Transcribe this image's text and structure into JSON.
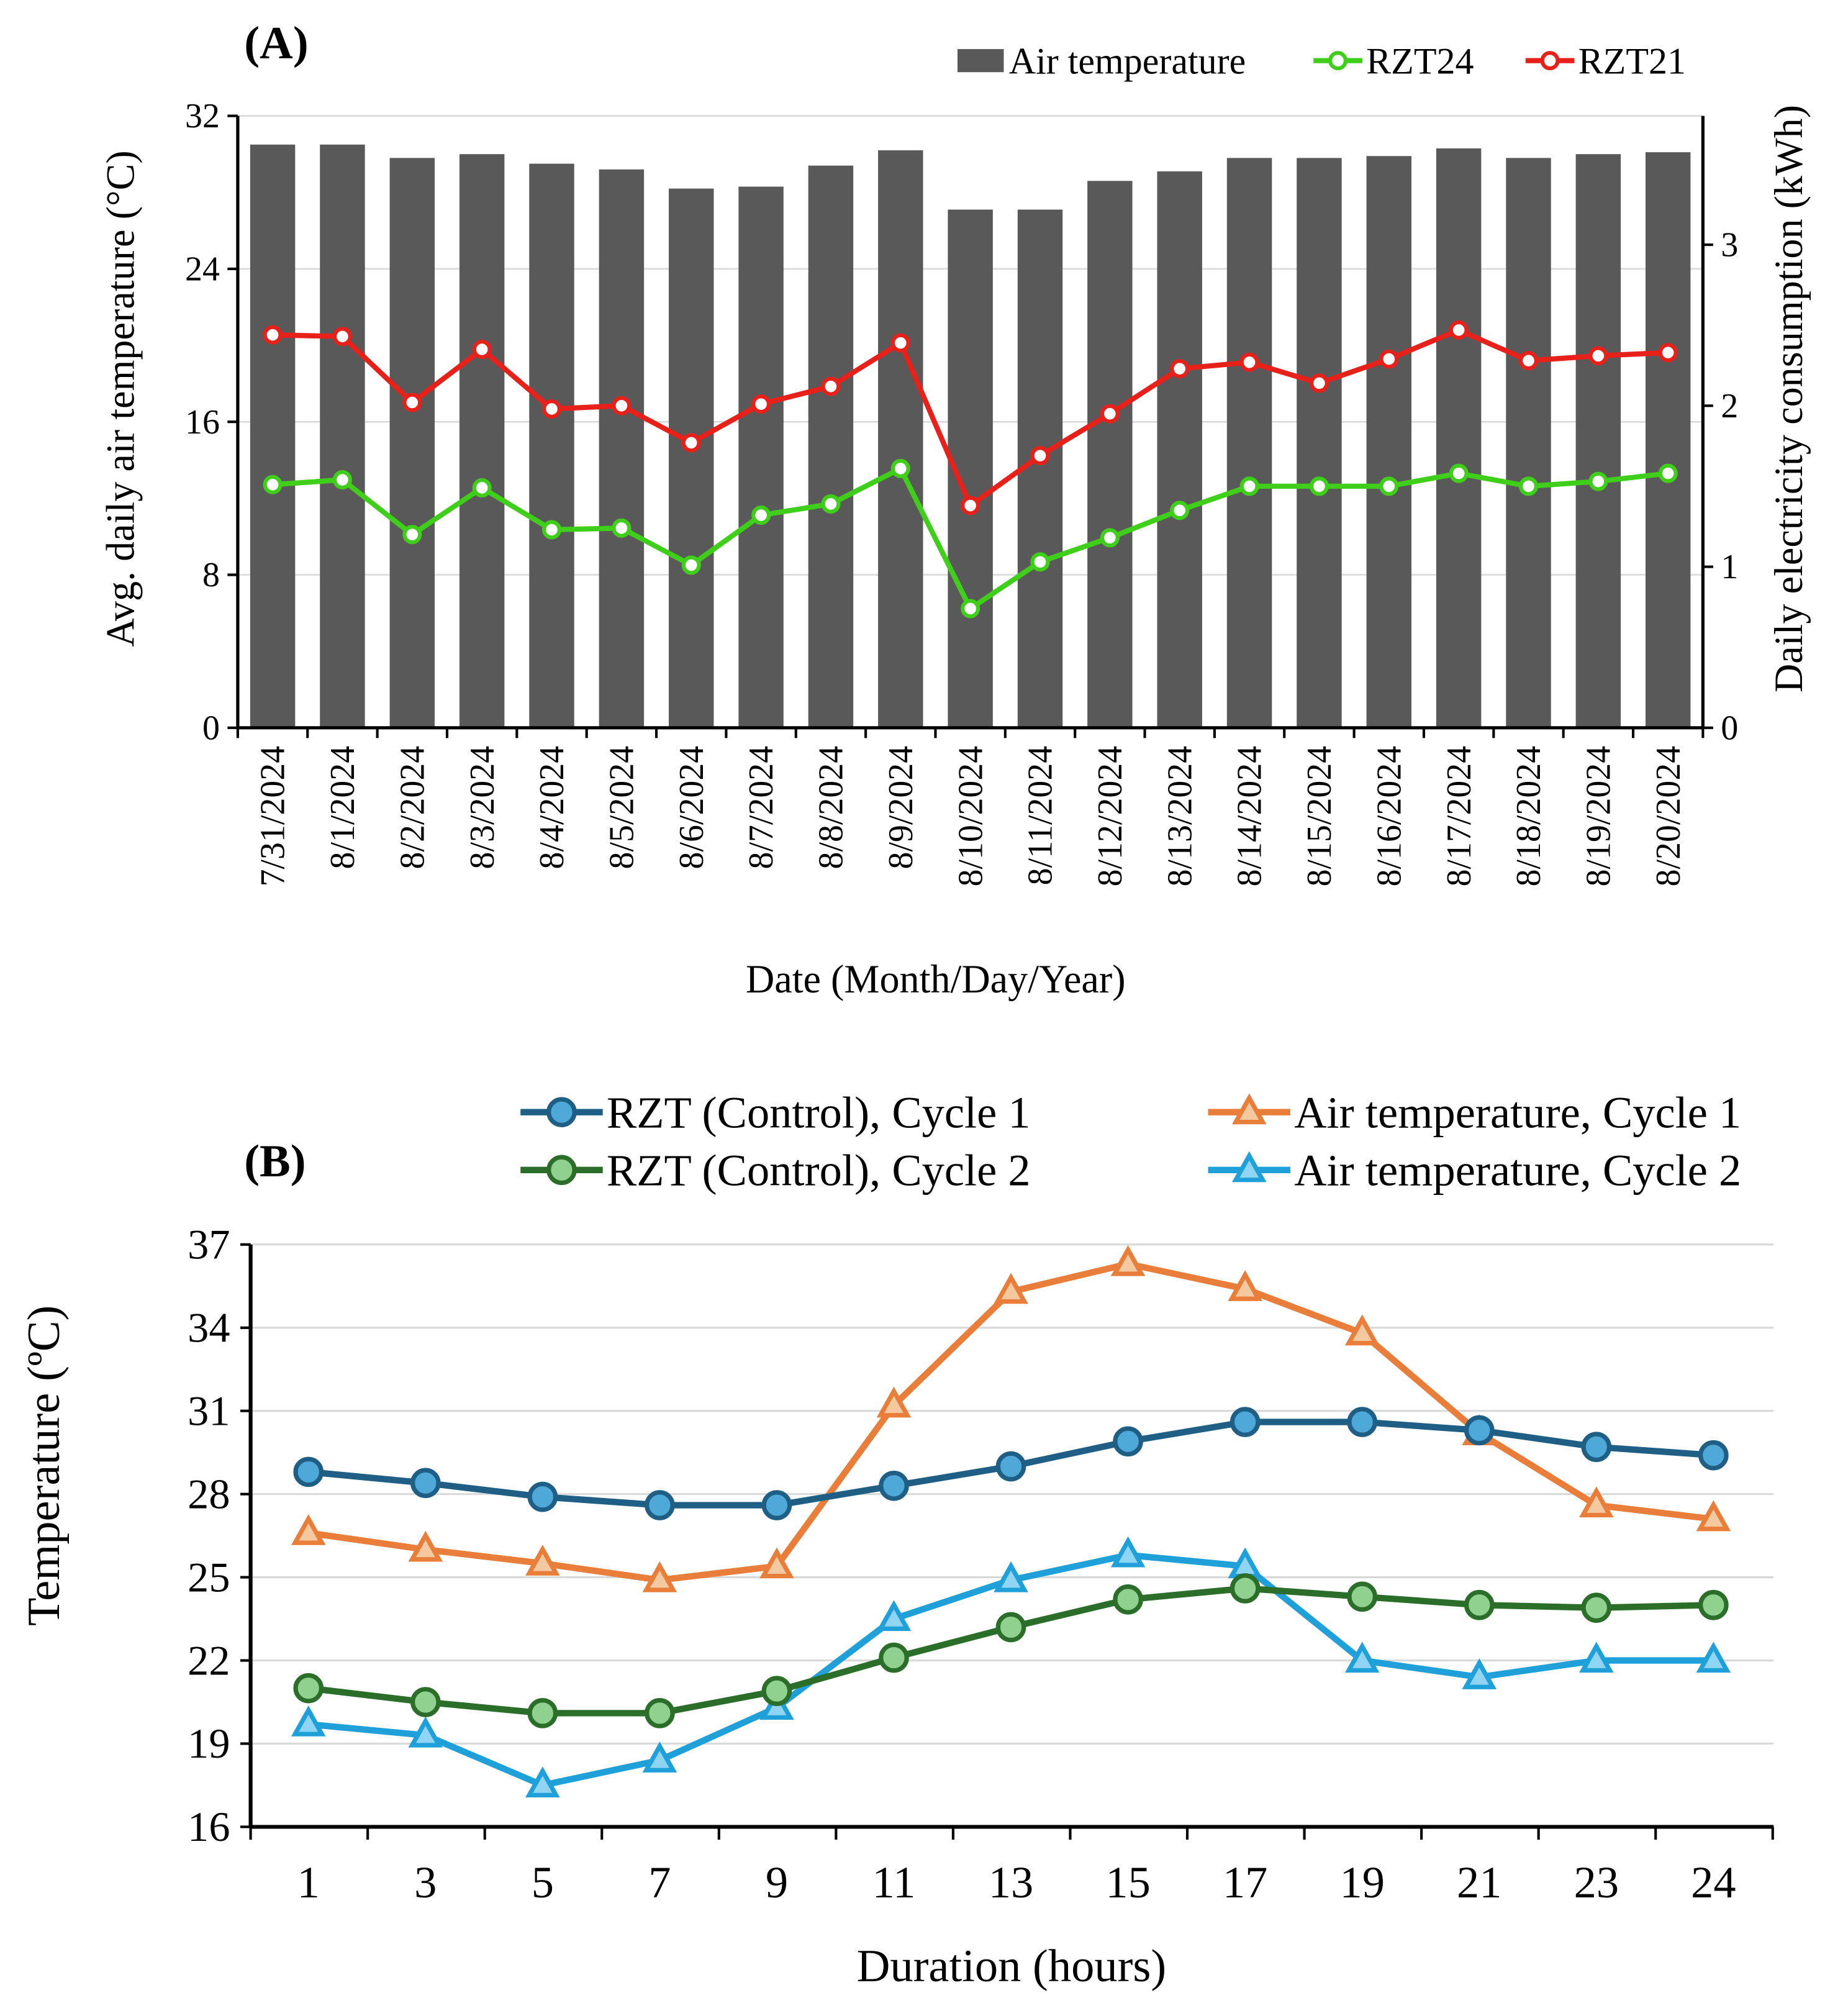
{
  "chart_data": [
    {
      "type": "bar",
      "panel_title": "(A)",
      "xlabel": "Date (Month/Day/Year)",
      "ylabel": "Avg. daily air temperature (°C)",
      "y2label": "Daily electricity consumption (kWh)",
      "ylim": [
        0,
        32
      ],
      "y2lim": [
        0,
        3.8
      ],
      "yticks": [
        "0",
        "8",
        "16",
        "24",
        "32"
      ],
      "y2ticks": [
        "0",
        "1",
        "2",
        "3"
      ],
      "legend_position": "top-right",
      "categories": [
        "7/31/2024",
        "8/1/2024",
        "8/2/2024",
        "8/3/2024",
        "8/4/2024",
        "8/5/2024",
        "8/6/2024",
        "8/7/2024",
        "8/8/2024",
        "8/9/2024",
        "8/10/2024",
        "8/11/2024",
        "8/12/2024",
        "8/13/2024",
        "8/14/2024",
        "8/15/2024",
        "8/16/2024",
        "8/17/2024",
        "8/18/2024",
        "8/19/2024",
        "8/20/2024"
      ],
      "series": [
        {
          "name": "Air temperature",
          "type": "bar",
          "axis": "left",
          "color": "#595959",
          "values": [
            30.5,
            30.5,
            29.8,
            30.0,
            29.5,
            29.2,
            28.2,
            28.3,
            29.4,
            30.2,
            27.1,
            27.1,
            28.6,
            29.1,
            29.8,
            29.8,
            29.9,
            30.3,
            29.8,
            30.0,
            30.1
          ]
        },
        {
          "name": "RZT24",
          "type": "line",
          "axis": "right",
          "color": "#3fcf1a",
          "values": [
            1.51,
            1.54,
            1.2,
            1.49,
            1.23,
            1.24,
            1.01,
            1.32,
            1.39,
            1.61,
            0.74,
            1.03,
            1.18,
            1.35,
            1.5,
            1.5,
            1.5,
            1.58,
            1.5,
            1.53,
            1.58
          ]
        },
        {
          "name": "RZT21",
          "type": "line",
          "axis": "right",
          "color": "#e8201a",
          "values": [
            2.44,
            2.43,
            2.02,
            2.35,
            1.98,
            2.0,
            1.77,
            2.01,
            2.12,
            2.39,
            1.38,
            1.69,
            1.95,
            2.23,
            2.27,
            2.14,
            2.29,
            2.47,
            2.28,
            2.31,
            2.33
          ]
        }
      ]
    },
    {
      "type": "line",
      "panel_title": "(B)",
      "xlabel": "Duration (hours)",
      "ylabel": "Temperature (ºC)",
      "ylim": [
        16,
        37
      ],
      "yticks": [
        "16",
        "19",
        "22",
        "25",
        "28",
        "31",
        "34",
        "37"
      ],
      "grid": true,
      "legend_position": "top",
      "categories": [
        "1",
        "3",
        "5",
        "7",
        "9",
        "11",
        "13",
        "15",
        "17",
        "19",
        "21",
        "23",
        "24"
      ],
      "series": [
        {
          "name": "RZT (Control), Cycle 1",
          "marker": "circle",
          "color": "#1f5f85",
          "fill": "#4ea8d8",
          "values": [
            28.8,
            28.4,
            27.9,
            27.6,
            27.6,
            28.3,
            29.0,
            29.9,
            30.6,
            30.6,
            30.3,
            29.7,
            29.4
          ]
        },
        {
          "name": "RZT (Control), Cycle 2",
          "marker": "circle",
          "color": "#2a6e2a",
          "fill": "#8fd18f",
          "values": [
            21.0,
            20.5,
            20.1,
            20.1,
            20.9,
            22.1,
            23.2,
            24.2,
            24.6,
            24.3,
            24.0,
            23.9,
            24.0
          ]
        },
        {
          "name": "Air temperature, Cycle 1",
          "marker": "triangle",
          "color": "#e87e3a",
          "fill": "#f5c9a0",
          "values": [
            26.6,
            26.0,
            25.5,
            24.9,
            25.4,
            31.2,
            35.3,
            36.3,
            35.4,
            33.8,
            30.2,
            27.6,
            27.1
          ]
        },
        {
          "name": "Air temperature, Cycle 2",
          "marker": "triangle",
          "color": "#1fa0d8",
          "fill": "#8fd4f2",
          "values": [
            19.7,
            19.3,
            17.5,
            18.4,
            20.3,
            23.5,
            24.9,
            25.8,
            25.4,
            22.0,
            21.4,
            22.0,
            22.0
          ]
        }
      ]
    }
  ]
}
